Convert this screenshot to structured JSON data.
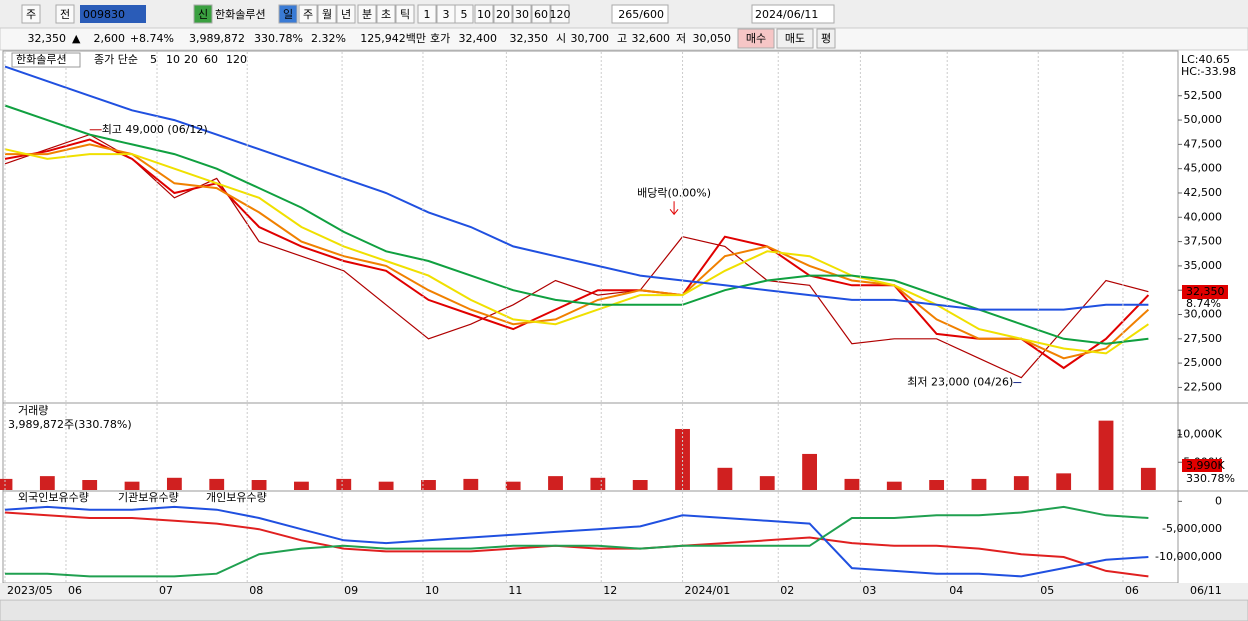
{
  "toolbar": {
    "items": [
      "주",
      "전",
      "009830",
      "신",
      "한화솔루션",
      "일",
      "주",
      "월",
      "년",
      "분",
      "초",
      "틱",
      "1",
      "3",
      "5",
      "10",
      "20",
      "30",
      "60",
      "120",
      "265/600",
      "2024/06/11"
    ]
  },
  "quote": {
    "items": [
      "32,350",
      "▲",
      "2,600",
      "+8.74%",
      "3,989,872",
      "330.78%",
      "2.32%",
      "125,942백만",
      "호가",
      "32,400",
      "32,350",
      "시",
      "30,700",
      "고",
      "32,600",
      "저",
      "30,050",
      "매수",
      "매도",
      "평"
    ]
  },
  "chart_data": [
    {
      "type": "line",
      "title": "한화솔루션",
      "ma_label": "종가 단순",
      "x": [
        0,
        1,
        2,
        3,
        4,
        5,
        6,
        7,
        8,
        9,
        10,
        11,
        12,
        13,
        14,
        15,
        16,
        17,
        18,
        19,
        20,
        21,
        22,
        23,
        24,
        25,
        26,
        27
      ],
      "xlim": [
        0,
        27.7
      ],
      "ylim": [
        21000,
        57000
      ],
      "yticks": [
        {
          "value": 22500,
          "label": "22,500"
        },
        {
          "value": 25000,
          "label": "25,000"
        },
        {
          "value": 27500,
          "label": "27,500"
        },
        {
          "value": 30000,
          "label": "30,000"
        },
        {
          "value": 32500,
          "label": "32,500"
        },
        {
          "value": 35000,
          "label": "35,000"
        },
        {
          "value": 37500,
          "label": "37,500"
        },
        {
          "value": 40000,
          "label": "40,000"
        },
        {
          "value": 42500,
          "label": "42,500"
        },
        {
          "value": 45000,
          "label": "45,000"
        },
        {
          "value": 47500,
          "label": "47,500"
        },
        {
          "value": 50000,
          "label": "50,000"
        },
        {
          "value": 52500,
          "label": "52,500"
        }
      ],
      "close": {
        "color": "#b00000",
        "values": [
          45500,
          47000,
          48500,
          46000,
          42000,
          44000,
          37500,
          36000,
          34500,
          31000,
          27500,
          29000,
          31000,
          33500,
          32000,
          32500,
          38000,
          37000,
          33500,
          33000,
          27000,
          27500,
          27500,
          25500,
          23500,
          28500,
          33500,
          32350
        ]
      },
      "series": [
        {
          "name": "5",
          "color": "#e00000",
          "values": [
            46000,
            46800,
            48000,
            46000,
            42500,
            43500,
            39000,
            37000,
            35500,
            34500,
            31500,
            30000,
            28500,
            30500,
            32500,
            32500,
            32000,
            38000,
            37000,
            34000,
            33000,
            33000,
            28000,
            27500,
            27500,
            24500,
            27500,
            32000
          ]
        },
        {
          "name": "10",
          "color": "#f08000",
          "values": [
            46500,
            46500,
            47500,
            46500,
            43500,
            43000,
            40500,
            37500,
            36000,
            35000,
            32500,
            30500,
            29000,
            29500,
            31500,
            32500,
            32000,
            36000,
            37000,
            35000,
            33500,
            33000,
            29500,
            27500,
            27500,
            25500,
            26500,
            30500
          ]
        },
        {
          "name": "20",
          "color": "#f0e000",
          "values": [
            47000,
            46000,
            46500,
            46500,
            45000,
            43500,
            42000,
            39000,
            37000,
            35500,
            34000,
            31500,
            29500,
            29000,
            30500,
            32000,
            32000,
            34500,
            36500,
            36000,
            34000,
            33000,
            31000,
            28500,
            27500,
            26500,
            26000,
            29000
          ]
        },
        {
          "name": "60",
          "color": "#10a040",
          "values": [
            51500,
            50000,
            48500,
            47500,
            46500,
            45000,
            43000,
            41000,
            38500,
            36500,
            35500,
            34000,
            32500,
            31500,
            31000,
            31000,
            31000,
            32500,
            33500,
            34000,
            34000,
            33500,
            32000,
            30500,
            29000,
            27500,
            27000,
            27500
          ]
        },
        {
          "name": "120",
          "color": "#2050e0",
          "values": [
            55500,
            54000,
            52500,
            51000,
            50000,
            48500,
            47000,
            45500,
            44000,
            42500,
            40500,
            39000,
            37000,
            36000,
            35000,
            34000,
            33500,
            33000,
            32500,
            32000,
            31500,
            31500,
            31000,
            30500,
            30500,
            30500,
            31000,
            31000
          ]
        }
      ],
      "annotations": [
        {
          "text": "최고 49,000 (06/12)",
          "x": 2,
          "y": 49000
        },
        {
          "text": "배당락(0.00%)",
          "x": 15.8,
          "y": 40000
        },
        {
          "text": "최저 23,000 (04/26)",
          "x": 24,
          "y": 23000
        }
      ],
      "tags": {
        "lc": "LC:40.65",
        "hc": "HC:-33.98",
        "price": "32,350",
        "change": "8.74%"
      }
    },
    {
      "type": "bar",
      "title": "거래량",
      "subtitle": "3,989,872주(330.78%)",
      "color": "#d02020",
      "x": [
        0,
        1,
        2,
        3,
        4,
        5,
        6,
        7,
        8,
        9,
        10,
        11,
        12,
        13,
        14,
        15,
        16,
        17,
        18,
        19,
        20,
        21,
        22,
        23,
        24,
        25,
        26,
        27
      ],
      "xlim": [
        0,
        27.7
      ],
      "ylim": [
        0,
        15500
      ],
      "yticks": [
        {
          "value": 5000,
          "label": "5,000K"
        },
        {
          "value": 10000,
          "label": "10,000K"
        }
      ],
      "values": [
        2000,
        2500,
        1800,
        1500,
        2200,
        2000,
        1800,
        1500,
        2000,
        1500,
        1800,
        2000,
        1500,
        2500,
        2200,
        1800,
        11000,
        4000,
        2500,
        6500,
        2000,
        1500,
        1800,
        2000,
        2500,
        3000,
        12500,
        3990
      ],
      "tags": {
        "volume": "3,990K",
        "ratio": "330.78%"
      }
    },
    {
      "type": "line",
      "grid": true,
      "x": [
        0,
        1,
        2,
        3,
        4,
        5,
        6,
        7,
        8,
        9,
        10,
        11,
        12,
        13,
        14,
        15,
        16,
        17,
        18,
        19,
        20,
        21,
        22,
        23,
        24,
        25,
        26,
        27
      ],
      "xlim": [
        0,
        27.7
      ],
      "ylim": [
        -14500000,
        1500000
      ],
      "yticks": [
        {
          "value": -10000000,
          "label": "-10,000,000"
        },
        {
          "value": -5000000,
          "label": "-5,000,000"
        },
        0
      ],
      "xticks": [
        {
          "value": 0,
          "label": "2023/05"
        },
        {
          "value": 1.44,
          "label": "06"
        },
        {
          "value": 3.59,
          "label": "07"
        },
        {
          "value": 5.72,
          "label": "08"
        },
        {
          "value": 7.96,
          "label": "09"
        },
        {
          "value": 9.87,
          "label": "10"
        },
        {
          "value": 11.84,
          "label": "11"
        },
        {
          "value": 14.08,
          "label": "12"
        },
        {
          "value": 16.0,
          "label": "2024/01"
        },
        {
          "value": 18.26,
          "label": "02"
        },
        {
          "value": 20.2,
          "label": "03"
        },
        {
          "value": 22.25,
          "label": "04"
        },
        {
          "value": 24.4,
          "label": "05"
        },
        {
          "value": 26.4,
          "label": "06"
        }
      ],
      "series": [
        {
          "name": "외국인보유수량",
          "color": "#e02020",
          "values": [
            -2000000,
            -2500000,
            -3000000,
            -3000000,
            -3500000,
            -4000000,
            -5000000,
            -7000000,
            -8500000,
            -9000000,
            -9000000,
            -9000000,
            -8500000,
            -8000000,
            -8500000,
            -8500000,
            -8000000,
            -7500000,
            -7000000,
            -6500000,
            -7500000,
            -8000000,
            -8000000,
            -8500000,
            -9500000,
            -10000000,
            -12500000,
            -13500000
          ]
        },
        {
          "name": "기관보유수량",
          "color": "#2050e0",
          "values": [
            -1500000,
            -1000000,
            -1500000,
            -1500000,
            -1000000,
            -1500000,
            -3000000,
            -5000000,
            -7000000,
            -7500000,
            -7000000,
            -6500000,
            -6000000,
            -5500000,
            -5000000,
            -4500000,
            -2500000,
            -3000000,
            -3500000,
            -4000000,
            -12000000,
            -12500000,
            -13000000,
            -13000000,
            -13500000,
            -12000000,
            -10500000,
            -10000000
          ]
        },
        {
          "name": "개인보유수량",
          "color": "#20a050",
          "values": [
            -13000000,
            -13000000,
            -13500000,
            -13500000,
            -13500000,
            -13000000,
            -9500000,
            -8500000,
            -8000000,
            -8500000,
            -8500000,
            -8500000,
            -8000000,
            -8000000,
            -8000000,
            -8500000,
            -8000000,
            -8000000,
            -8000000,
            -8000000,
            -3000000,
            -3000000,
            -2500000,
            -2500000,
            -2000000,
            -1000000,
            -2500000,
            -3000000
          ]
        }
      ],
      "end_label": "06/11"
    }
  ]
}
